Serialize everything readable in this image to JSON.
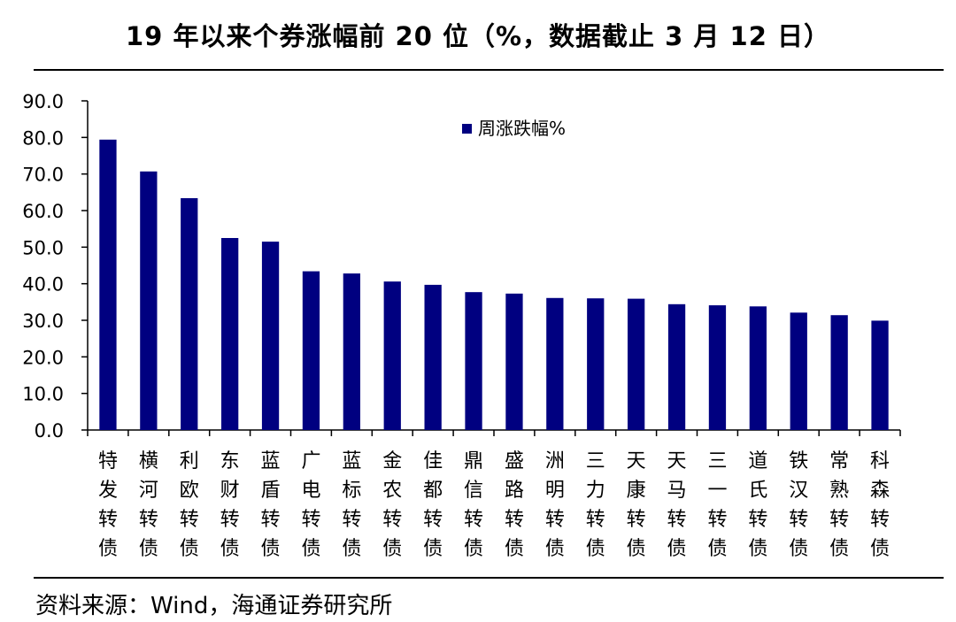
{
  "header": {
    "title": "19 年以来个券涨幅前 20 位（%，数据截止 3 月 12 日）"
  },
  "footer": {
    "source": "资料来源：Wind，海通证券研究所"
  },
  "chart_data": {
    "type": "bar",
    "title": "19 年以来个券涨幅前 20 位（%，数据截止 3 月 12 日）",
    "categories": [
      "特发转债",
      "横河转债",
      "利欧转债",
      "东财转债",
      "蓝盾转债",
      "广电转债",
      "蓝标转债",
      "金农转债",
      "佳都转债",
      "鼎信转债",
      "盛路转债",
      "洲明转债",
      "三力转债",
      "天康转债",
      "天马转债",
      "三一转债",
      "道氏转债",
      "铁汉转债",
      "常熟转债",
      "科森转债"
    ],
    "series": [
      {
        "name": "周涨跌幅%",
        "color": "#000080",
        "values": [
          79.4,
          70.7,
          63.4,
          52.5,
          51.5,
          43.4,
          42.8,
          40.6,
          39.7,
          37.7,
          37.3,
          36.1,
          36.0,
          35.9,
          34.4,
          34.1,
          33.8,
          32.1,
          31.4,
          29.9
        ]
      }
    ],
    "ylim": [
      0,
      90
    ],
    "yticks": [
      "0.0",
      "10.0",
      "20.0",
      "30.0",
      "40.0",
      "50.0",
      "60.0",
      "70.0",
      "80.0",
      "90.0"
    ],
    "legend": "top-center",
    "grid": false
  }
}
